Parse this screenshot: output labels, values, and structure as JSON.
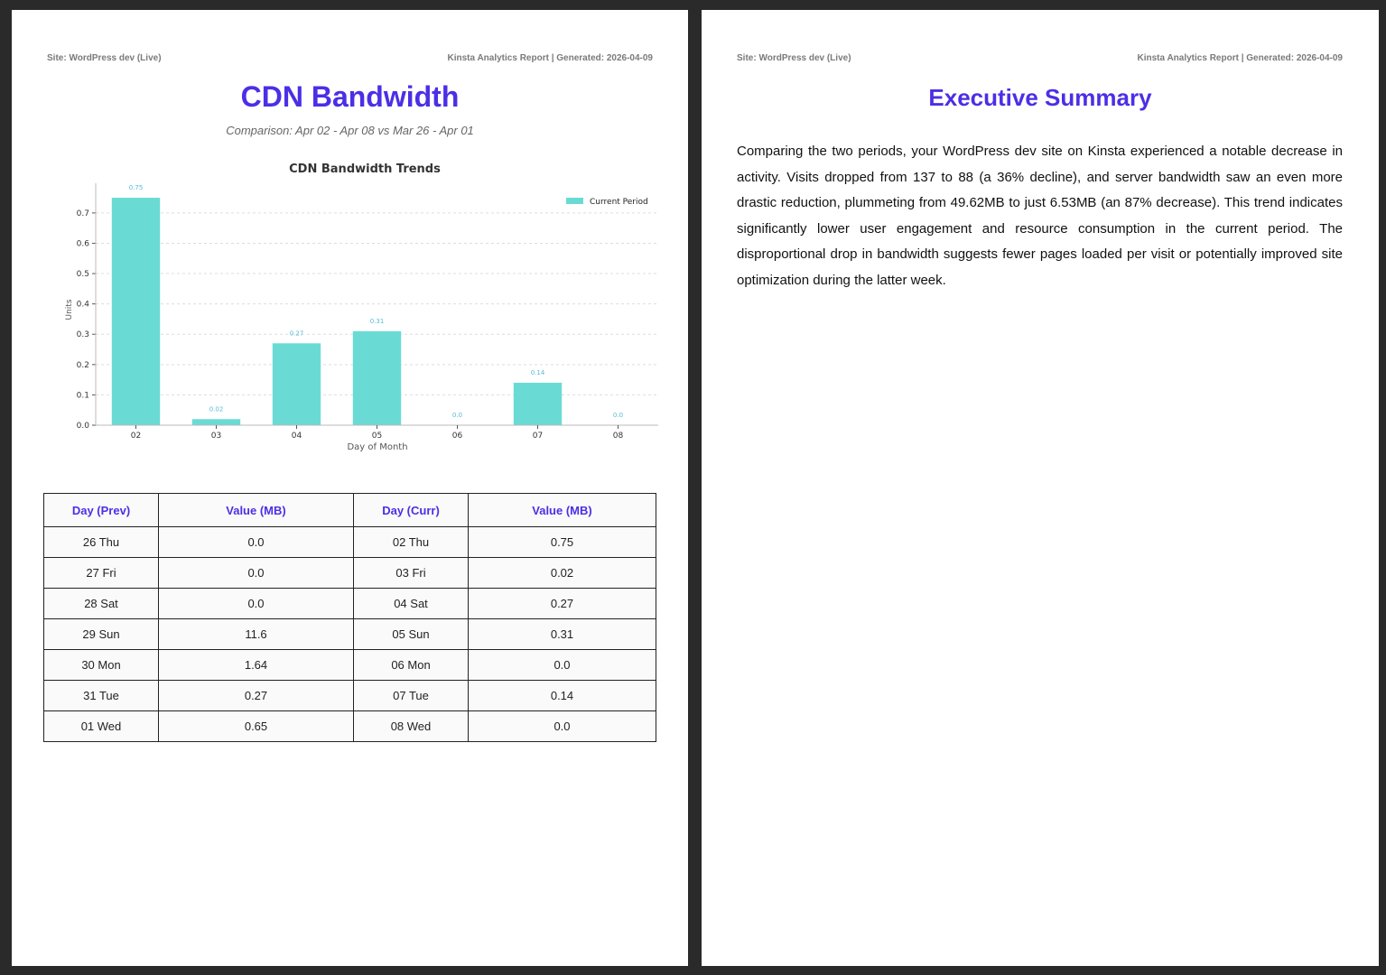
{
  "left_page": {
    "header_site": "Site: WordPress dev (Live)",
    "header_report": "Kinsta Analytics Report | Generated: 2026-04-09",
    "title": "CDN Bandwidth",
    "subtitle": "Comparison: Apr 02 - Apr 08 vs Mar 26 - Apr 01"
  },
  "chart_data": {
    "type": "bar",
    "title": "CDN Bandwidth Trends",
    "xlabel": "Day of Month",
    "ylabel": "Units",
    "categories": [
      "02",
      "03",
      "04",
      "05",
      "06",
      "07",
      "08"
    ],
    "series": [
      {
        "name": "Current Period",
        "values": [
          0.75,
          0.02,
          0.27,
          0.31,
          0.0,
          0.14,
          0.0
        ]
      }
    ],
    "data_labels": [
      "0.75",
      "0.02",
      "0.27",
      "0.31",
      "0.0",
      "0.14",
      "0.0"
    ],
    "ylim": [
      0,
      0.78
    ],
    "yticks": [
      "0.0",
      "0.1",
      "0.2",
      "0.3",
      "0.4",
      "0.5",
      "0.6",
      "0.7"
    ],
    "grid": "horizontal dashed",
    "legend_position": "top-right",
    "colors": {
      "bar": "#69dbd4",
      "label": "#55b9d6"
    }
  },
  "table": {
    "headers": [
      "Day (Prev)",
      "Value (MB)",
      "Day (Curr)",
      "Value (MB)"
    ],
    "rows": [
      [
        "26 Thu",
        "0.0",
        "02 Thu",
        "0.75"
      ],
      [
        "27 Fri",
        "0.0",
        "03 Fri",
        "0.02"
      ],
      [
        "28 Sat",
        "0.0",
        "04 Sat",
        "0.27"
      ],
      [
        "29 Sun",
        "11.6",
        "05 Sun",
        "0.31"
      ],
      [
        "30 Mon",
        "1.64",
        "06 Mon",
        "0.0"
      ],
      [
        "31 Tue",
        "0.27",
        "07 Tue",
        "0.14"
      ],
      [
        "01 Wed",
        "0.65",
        "08 Wed",
        "0.0"
      ]
    ]
  },
  "right_page": {
    "header_site": "Site: WordPress dev (Live)",
    "header_report": "Kinsta Analytics Report | Generated: 2026-04-09",
    "title": "Executive Summary",
    "body": "Comparing the two periods, your WordPress dev site on Kinsta experienced a notable decrease in activity. Visits dropped from 137 to 88 (a 36% decline), and server bandwidth saw an even more drastic reduction, plummeting from 49.62MB to just 6.53MB (an 87% decrease). This trend indicates significantly lower user engagement and resource consumption in the current period. The disproportional drop in bandwidth suggests fewer pages loaded per visit or potentially improved site optimization during the latter week."
  },
  "colors": {
    "accent": "#4b2fe6",
    "background": "#2a2a2a"
  }
}
